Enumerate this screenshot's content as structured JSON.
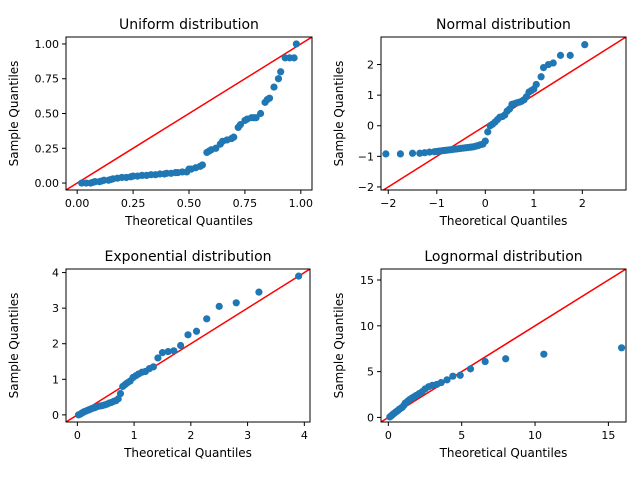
{
  "colors": {
    "points": "#1f77b4",
    "line": "#ff0000"
  },
  "chart_data": [
    {
      "type": "scatter",
      "title": "Uniform distribution",
      "xlabel": "Theoretical Quantiles",
      "ylabel": "Sample Quantiles",
      "xlim": [
        -0.05,
        1.05
      ],
      "ylim": [
        -0.05,
        1.05
      ],
      "xticks": [
        0.0,
        0.25,
        0.5,
        0.75,
        1.0
      ],
      "xtick_labels": [
        "0.00",
        "0.25",
        "0.50",
        "0.75",
        "1.00"
      ],
      "yticks": [
        0.0,
        0.25,
        0.5,
        0.75,
        1.0
      ],
      "ytick_labels": [
        "0.00",
        "0.25",
        "0.50",
        "0.75",
        "1.00"
      ],
      "reference_line": [
        [
          -0.05,
          -0.05
        ],
        [
          1.05,
          1.05
        ]
      ],
      "x": [
        0.02,
        0.04,
        0.06,
        0.07,
        0.08,
        0.1,
        0.11,
        0.12,
        0.14,
        0.15,
        0.16,
        0.18,
        0.2,
        0.22,
        0.24,
        0.25,
        0.27,
        0.29,
        0.31,
        0.33,
        0.35,
        0.37,
        0.39,
        0.4,
        0.42,
        0.44,
        0.45,
        0.47,
        0.49,
        0.5,
        0.51,
        0.53,
        0.55,
        0.56,
        0.58,
        0.59,
        0.6,
        0.62,
        0.64,
        0.65,
        0.67,
        0.69,
        0.7,
        0.72,
        0.73,
        0.75,
        0.76,
        0.78,
        0.79,
        0.8,
        0.82,
        0.84,
        0.85,
        0.86,
        0.88,
        0.9,
        0.91,
        0.93,
        0.95,
        0.97,
        0.98
      ],
      "y": [
        0.0,
        0.0,
        0.0,
        0.005,
        0.01,
        0.01,
        0.015,
        0.02,
        0.02,
        0.025,
        0.03,
        0.035,
        0.04,
        0.04,
        0.045,
        0.05,
        0.05,
        0.055,
        0.055,
        0.06,
        0.06,
        0.065,
        0.065,
        0.07,
        0.07,
        0.075,
        0.075,
        0.08,
        0.08,
        0.1,
        0.1,
        0.11,
        0.12,
        0.13,
        0.22,
        0.23,
        0.24,
        0.25,
        0.28,
        0.3,
        0.31,
        0.32,
        0.33,
        0.4,
        0.42,
        0.45,
        0.46,
        0.47,
        0.47,
        0.47,
        0.5,
        0.58,
        0.6,
        0.61,
        0.69,
        0.75,
        0.8,
        0.9,
        0.9,
        0.9,
        1.0
      ]
    },
    {
      "type": "scatter",
      "title": "Normal distribution",
      "xlabel": "Theoretical Quantiles",
      "ylabel": "Sample Quantiles",
      "xlim": [
        -2.15,
        2.9
      ],
      "ylim": [
        -2.1,
        2.9
      ],
      "xticks": [
        -2,
        -1,
        0,
        1,
        2
      ],
      "xtick_labels": [
        "−2",
        "−1",
        "0",
        "1",
        "2"
      ],
      "yticks": [
        -2,
        -1,
        0,
        1,
        2
      ],
      "ytick_labels": [
        "−2",
        "−1",
        "0",
        "1",
        "2"
      ],
      "reference_line": [
        [
          -2.15,
          -2.15
        ],
        [
          2.9,
          2.9
        ]
      ],
      "x": [
        -2.05,
        -1.75,
        -1.5,
        -1.35,
        -1.25,
        -1.15,
        -1.05,
        -1.0,
        -0.95,
        -0.9,
        -0.85,
        -0.8,
        -0.75,
        -0.7,
        -0.65,
        -0.6,
        -0.55,
        -0.5,
        -0.45,
        -0.4,
        -0.35,
        -0.3,
        -0.25,
        -0.2,
        -0.15,
        -0.1,
        -0.05,
        0.0,
        0.05,
        0.1,
        0.15,
        0.2,
        0.25,
        0.3,
        0.35,
        0.4,
        0.45,
        0.5,
        0.55,
        0.6,
        0.65,
        0.7,
        0.75,
        0.8,
        0.85,
        0.9,
        0.95,
        1.0,
        1.05,
        1.15,
        1.2,
        1.3,
        1.4,
        1.55,
        1.75,
        2.05
      ],
      "y": [
        -0.92,
        -0.92,
        -0.9,
        -0.9,
        -0.88,
        -0.86,
        -0.85,
        -0.84,
        -0.83,
        -0.82,
        -0.81,
        -0.8,
        -0.79,
        -0.78,
        -0.77,
        -0.76,
        -0.75,
        -0.74,
        -0.73,
        -0.72,
        -0.71,
        -0.7,
        -0.69,
        -0.67,
        -0.65,
        -0.62,
        -0.6,
        -0.5,
        -0.2,
        0.0,
        0.05,
        0.12,
        0.2,
        0.28,
        0.3,
        0.35,
        0.48,
        0.55,
        0.7,
        0.72,
        0.75,
        0.77,
        0.8,
        0.85,
        0.95,
        1.1,
        1.15,
        1.2,
        1.35,
        1.6,
        1.9,
        2.0,
        2.05,
        2.3,
        2.3,
        2.65
      ]
    },
    {
      "type": "scatter",
      "title": "Exponential distribution",
      "xlabel": "Theoretical Quantiles",
      "ylabel": "Sample Quantiles",
      "xlim": [
        -0.2,
        4.1
      ],
      "ylim": [
        -0.2,
        4.1
      ],
      "xticks": [
        0,
        1,
        2,
        3,
        4
      ],
      "xtick_labels": [
        "0",
        "1",
        "2",
        "3",
        "4"
      ],
      "yticks": [
        0,
        1,
        2,
        3,
        4
      ],
      "ytick_labels": [
        "0",
        "1",
        "2",
        "3",
        "4"
      ],
      "reference_line": [
        [
          -0.2,
          -0.2
        ],
        [
          4.1,
          4.1
        ]
      ],
      "x": [
        0.02,
        0.05,
        0.08,
        0.11,
        0.14,
        0.17,
        0.2,
        0.23,
        0.26,
        0.3,
        0.33,
        0.36,
        0.4,
        0.44,
        0.48,
        0.52,
        0.56,
        0.6,
        0.64,
        0.68,
        0.72,
        0.76,
        0.8,
        0.84,
        0.88,
        0.93,
        0.98,
        1.03,
        1.08,
        1.14,
        1.2,
        1.27,
        1.34,
        1.42,
        1.5,
        1.6,
        1.7,
        1.82,
        1.95,
        2.1,
        2.28,
        2.5,
        2.8,
        3.2,
        3.9
      ],
      "y": [
        0.0,
        0.02,
        0.05,
        0.08,
        0.1,
        0.12,
        0.14,
        0.16,
        0.18,
        0.2,
        0.22,
        0.24,
        0.25,
        0.26,
        0.28,
        0.3,
        0.33,
        0.35,
        0.38,
        0.4,
        0.45,
        0.6,
        0.8,
        0.85,
        0.9,
        0.95,
        1.05,
        1.1,
        1.15,
        1.2,
        1.22,
        1.3,
        1.35,
        1.6,
        1.75,
        1.78,
        1.8,
        1.95,
        2.25,
        2.35,
        2.7,
        3.05,
        3.15,
        3.45,
        3.9
      ]
    },
    {
      "type": "scatter",
      "title": "Lognormal distribution",
      "xlabel": "Theoretical Quantiles",
      "ylabel": "Sample Quantiles",
      "xlim": [
        -0.5,
        16.2
      ],
      "ylim": [
        -0.5,
        16.2
      ],
      "xticks": [
        0,
        5,
        10,
        15
      ],
      "xtick_labels": [
        "0",
        "5",
        "10",
        "15"
      ],
      "yticks": [
        0,
        5,
        10,
        15
      ],
      "ytick_labels": [
        "0",
        "5",
        "10",
        "15"
      ],
      "reference_line": [
        [
          -0.5,
          -0.5
        ],
        [
          16.2,
          16.2
        ]
      ],
      "x": [
        0.1,
        0.18,
        0.25,
        0.32,
        0.4,
        0.48,
        0.56,
        0.65,
        0.75,
        0.85,
        0.95,
        1.05,
        1.15,
        1.3,
        1.45,
        1.6,
        1.75,
        1.9,
        2.1,
        2.3,
        2.5,
        2.75,
        3.0,
        3.3,
        3.6,
        4.0,
        4.4,
        4.9,
        5.6,
        6.6,
        8.0,
        10.6,
        15.9
      ],
      "y": [
        0.05,
        0.15,
        0.25,
        0.35,
        0.45,
        0.55,
        0.65,
        0.75,
        0.9,
        1.0,
        1.1,
        1.3,
        1.55,
        1.75,
        1.95,
        2.1,
        2.25,
        2.4,
        2.6,
        2.8,
        3.1,
        3.35,
        3.5,
        3.6,
        3.8,
        4.1,
        4.5,
        4.6,
        5.3,
        6.1,
        6.4,
        6.9,
        7.6
      ]
    }
  ]
}
